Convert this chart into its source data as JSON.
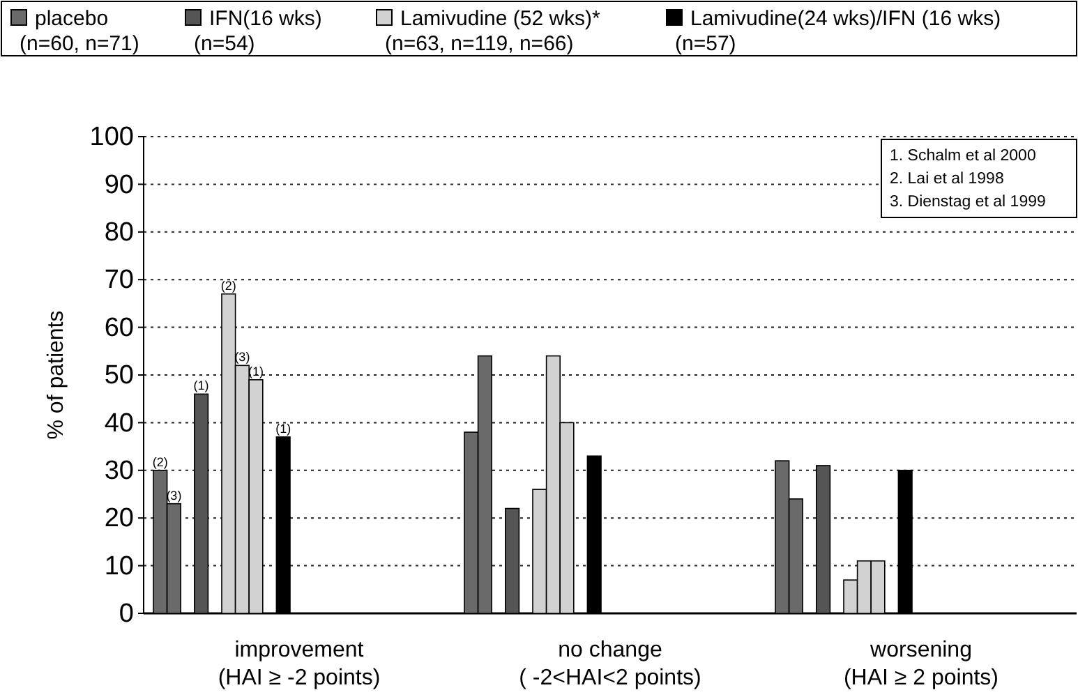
{
  "chart_data": {
    "type": "bar",
    "ylabel": "% of patients",
    "categories": [
      "improvement\n(HAI ≥ -2 points)",
      "no change\n( -2<HAI<2 points)",
      "worsening\n(HAI ≥ 2 points)"
    ],
    "series": [
      {
        "name": "placebo\n(n=60, n=71)",
        "color": "#6a6a6a",
        "values": [
          30,
          38,
          32
        ]
      },
      {
        "color": "#6a6a6a",
        "values": [
          23,
          54,
          24
        ]
      },
      {
        "name": "IFN(16 wks)\n(n=54)",
        "color": "#555555",
        "values": [
          46,
          22,
          31
        ]
      },
      {
        "name": "Lamivudine (52 wks)*\n(n=63, n=119, n=66)",
        "color": "#d2d2d2",
        "values": [
          67,
          26,
          7
        ]
      },
      {
        "color": "#d2d2d2",
        "values": [
          52,
          54,
          11
        ]
      },
      {
        "color": "#d2d2d2",
        "values": [
          49,
          40,
          11
        ]
      },
      {
        "name": "Lamivudine(24 wks)/IFN (16 wks)\n(n=57)",
        "color": "#000000",
        "values": [
          37,
          33,
          30
        ]
      }
    ],
    "ylim": [
      0,
      100
    ],
    "yticks": [
      0,
      10,
      20,
      30,
      40,
      50,
      60,
      70,
      80,
      90,
      100
    ],
    "grid": "y",
    "legend": "top",
    "annotations": [
      "1. Schalm et al 2000",
      "2. Lai et al 1998",
      "3. Dienstag et al 1999",
      "(2)",
      "(3)",
      "(1)",
      "(2)",
      "(3)",
      "(1)",
      "(1)"
    ]
  }
}
